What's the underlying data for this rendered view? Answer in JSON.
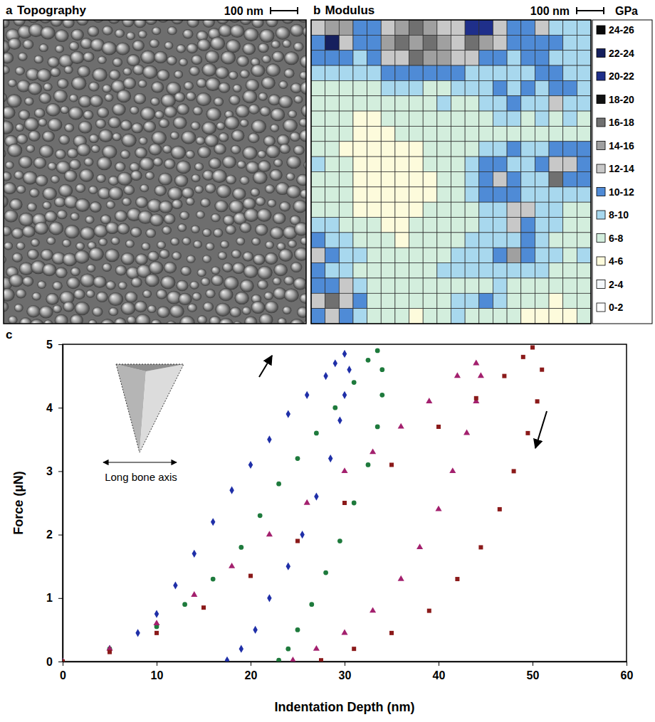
{
  "chart_data": [
    {
      "type": "image",
      "panel": "a",
      "title": "Topography",
      "scale_bar": "100 nm"
    },
    {
      "type": "heatmap",
      "panel": "b",
      "title": "Modulus",
      "scale_bar": "100 nm",
      "cells": [
        [
          12,
          15,
          14,
          11,
          10,
          12,
          14,
          16,
          15,
          13,
          12,
          21,
          20,
          13,
          11,
          10,
          12,
          9,
          8,
          9
        ],
        [
          11,
          23,
          12,
          10,
          11,
          14,
          17,
          15,
          16,
          14,
          13,
          17,
          14,
          12,
          10,
          11,
          11,
          10,
          9,
          8
        ],
        [
          10,
          11,
          10,
          9,
          10,
          12,
          13,
          16,
          15,
          14,
          12,
          12,
          11,
          10,
          9,
          10,
          11,
          9,
          8,
          8
        ],
        [
          8,
          9,
          8,
          8,
          9,
          10,
          10,
          11,
          11,
          10,
          10,
          9,
          9,
          9,
          8,
          9,
          10,
          10,
          9,
          8
        ],
        [
          7,
          7,
          6,
          7,
          7,
          8,
          8,
          8,
          7,
          7,
          8,
          8,
          9,
          10,
          9,
          10,
          8,
          11,
          10,
          9
        ],
        [
          7,
          6,
          6,
          6,
          7,
          7,
          6,
          7,
          7,
          8,
          7,
          7,
          8,
          9,
          10,
          9,
          8,
          12,
          9,
          8
        ],
        [
          7,
          6,
          6,
          5,
          5,
          6,
          7,
          6,
          7,
          7,
          6,
          7,
          7,
          8,
          8,
          7,
          8,
          7,
          8,
          7
        ],
        [
          6,
          7,
          6,
          5,
          5,
          5,
          6,
          6,
          7,
          6,
          6,
          7,
          6,
          7,
          7,
          6,
          7,
          7,
          6,
          7
        ],
        [
          7,
          6,
          5,
          5,
          5,
          5,
          5,
          5,
          6,
          6,
          6,
          7,
          8,
          9,
          10,
          9,
          8,
          10,
          11,
          10
        ],
        [
          8,
          7,
          6,
          5,
          5,
          4,
          5,
          5,
          6,
          6,
          6,
          8,
          11,
          10,
          9,
          8,
          10,
          12,
          13,
          11
        ],
        [
          7,
          6,
          6,
          5,
          5,
          5,
          5,
          5,
          5,
          6,
          7,
          9,
          11,
          13,
          10,
          9,
          8,
          16,
          11,
          10
        ],
        [
          6,
          6,
          6,
          5,
          4,
          5,
          5,
          5,
          5,
          6,
          6,
          8,
          10,
          11,
          10,
          9,
          8,
          9,
          9,
          8
        ],
        [
          7,
          7,
          6,
          5,
          5,
          5,
          5,
          5,
          6,
          6,
          6,
          7,
          8,
          9,
          12,
          13,
          9,
          8,
          7,
          7
        ],
        [
          8,
          8,
          7,
          6,
          6,
          5,
          5,
          6,
          6,
          6,
          7,
          7,
          8,
          9,
          13,
          11,
          9,
          8,
          7,
          6
        ],
        [
          10,
          9,
          8,
          7,
          6,
          6,
          5,
          6,
          7,
          7,
          7,
          8,
          8,
          8,
          9,
          10,
          8,
          7,
          7,
          7
        ],
        [
          13,
          10,
          9,
          8,
          7,
          6,
          6,
          6,
          7,
          7,
          8,
          9,
          8,
          11,
          15,
          10,
          8,
          8,
          7,
          8
        ],
        [
          10,
          9,
          9,
          7,
          6,
          6,
          7,
          7,
          7,
          8,
          8,
          9,
          8,
          8,
          9,
          8,
          8,
          7,
          7,
          7
        ],
        [
          11,
          11,
          12,
          8,
          7,
          6,
          7,
          6,
          6,
          7,
          7,
          7,
          7,
          8,
          7,
          7,
          6,
          6,
          6,
          7
        ],
        [
          12,
          16,
          13,
          10,
          7,
          7,
          6,
          6,
          7,
          7,
          8,
          9,
          10,
          9,
          7,
          6,
          6,
          5,
          6,
          6
        ],
        [
          11,
          13,
          11,
          9,
          7,
          6,
          6,
          5,
          6,
          7,
          8,
          7,
          6,
          7,
          6,
          5,
          5,
          4,
          5,
          6
        ]
      ],
      "colorbar": {
        "title": "GPa",
        "bins": [
          0,
          2,
          4,
          6,
          8,
          10,
          12,
          14,
          16,
          18,
          20,
          22,
          24,
          26
        ],
        "labels": [
          "0-2",
          "2-4",
          "4-6",
          "6-8",
          "8-10",
          "10-12",
          "12-14",
          "14-16",
          "16-18",
          "18-20",
          "20-22",
          "22-24",
          "24-26"
        ],
        "colors": [
          "#ffffff",
          "#f4f8fb",
          "#fdfbdc",
          "#d3eedd",
          "#a8d8ee",
          "#4f8bd6",
          "#c8c8c8",
          "#a0a0a0",
          "#707070",
          "#111111",
          "#1f2f8a",
          "#16205e",
          "#0a0a0a"
        ]
      }
    },
    {
      "type": "scatter",
      "panel": "c",
      "xlabel": "Indentation Depth (nm)",
      "ylabel": "Force (µN)",
      "xlim": [
        0,
        60
      ],
      "ylim": [
        0,
        5
      ],
      "xticks": [
        0,
        10,
        20,
        30,
        40,
        50,
        60
      ],
      "yticks": [
        0,
        1,
        2,
        3,
        4,
        5
      ],
      "annotations": [
        "Long bone axis"
      ],
      "series": [
        {
          "color": "#1f2fa8",
          "marker": "diamond",
          "x": [
            0,
            5,
            8,
            10,
            12,
            14,
            16,
            18,
            20,
            22,
            24,
            26,
            28,
            29,
            30,
            30.5,
            30,
            29.5,
            28.5,
            27,
            25.5,
            24,
            22,
            20.5,
            19,
            17.5
          ],
          "values": [
            0,
            0.2,
            0.45,
            0.75,
            1.2,
            1.7,
            2.2,
            2.7,
            3.1,
            3.5,
            3.9,
            4.2,
            4.5,
            4.7,
            4.85,
            4.6,
            4.2,
            3.8,
            3.2,
            2.6,
            2.0,
            1.5,
            1.0,
            0.5,
            0.2,
            0.02
          ]
        },
        {
          "color": "#1e7a3c",
          "marker": "circle",
          "x": [
            0,
            5,
            10,
            13,
            16,
            19,
            21,
            23,
            25,
            27,
            29,
            31,
            32.5,
            33.5,
            34,
            34,
            33.5,
            32.5,
            31,
            29.5,
            28,
            26.5,
            25,
            24,
            23
          ],
          "values": [
            0,
            0.2,
            0.55,
            0.9,
            1.3,
            1.8,
            2.3,
            2.8,
            3.2,
            3.6,
            4.0,
            4.4,
            4.75,
            4.9,
            4.6,
            4.2,
            3.7,
            3.1,
            2.5,
            1.9,
            1.4,
            0.9,
            0.5,
            0.2,
            0.02
          ]
        },
        {
          "color": "#a3206e",
          "marker": "triangle",
          "x": [
            0,
            5,
            10,
            14,
            18,
            22,
            26,
            30,
            33,
            36,
            39,
            42,
            44,
            44.5,
            44,
            43,
            41.5,
            40,
            38,
            36,
            33,
            30,
            27,
            24.5
          ],
          "values": [
            0,
            0.2,
            0.6,
            1.05,
            1.5,
            2.0,
            2.5,
            3.0,
            3.3,
            3.7,
            4.1,
            4.5,
            4.7,
            4.5,
            4.1,
            3.6,
            3.0,
            2.4,
            1.8,
            1.3,
            0.8,
            0.45,
            0.2,
            0.02
          ]
        },
        {
          "color": "#8b1a1a",
          "marker": "square",
          "x": [
            0,
            5,
            10,
            15,
            20,
            25,
            30,
            35,
            40,
            44,
            47,
            49,
            50,
            51,
            50.5,
            49.5,
            48,
            46.5,
            44.5,
            42,
            39,
            35,
            31,
            27.5
          ],
          "values": [
            0,
            0.15,
            0.45,
            0.85,
            1.35,
            1.9,
            2.5,
            3.1,
            3.7,
            4.15,
            4.5,
            4.8,
            4.95,
            4.6,
            4.1,
            3.6,
            3.0,
            2.4,
            1.8,
            1.3,
            0.8,
            0.45,
            0.2,
            0.02
          ]
        }
      ]
    }
  ]
}
